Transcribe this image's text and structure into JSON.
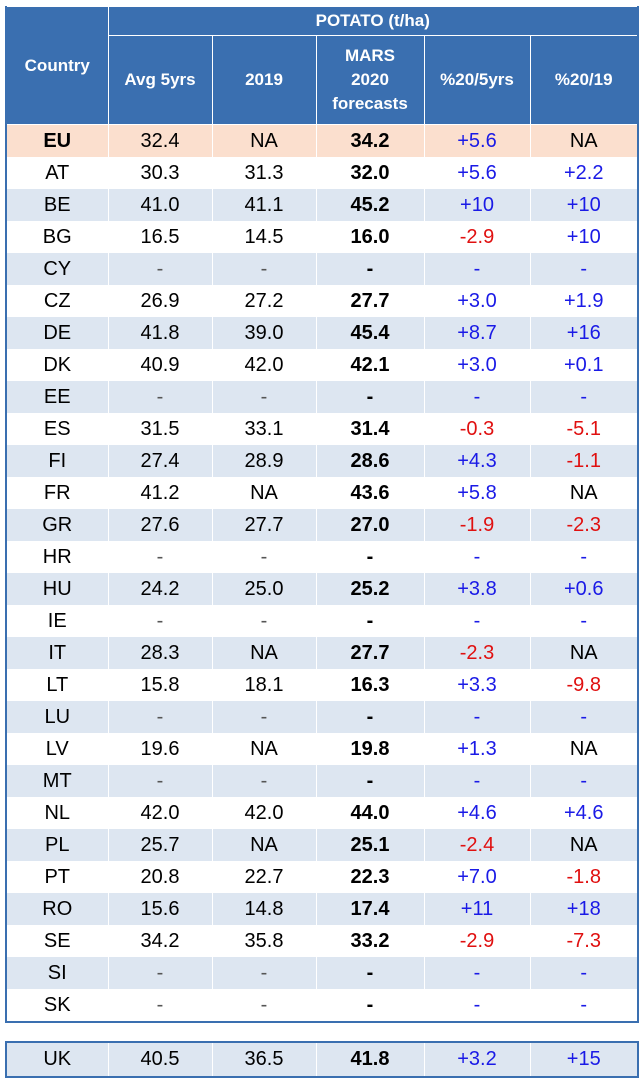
{
  "header": {
    "country": "Country",
    "group": "POTATO (t/ha)",
    "cols": [
      "Avg 5yrs",
      "2019",
      "MARS\n2020\nforecasts",
      "%20/5yrs",
      "%20/19"
    ]
  },
  "rows": [
    {
      "country": "EU",
      "avg": "32.4",
      "y2019": "NA",
      "forecast": "34.2",
      "vs5": "+5.6",
      "vs19": "NA"
    },
    {
      "country": "AT",
      "avg": "30.3",
      "y2019": "31.3",
      "forecast": "32.0",
      "vs5": "+5.6",
      "vs19": "+2.2"
    },
    {
      "country": "BE",
      "avg": "41.0",
      "y2019": "41.1",
      "forecast": "45.2",
      "vs5": "+10",
      "vs19": "+10"
    },
    {
      "country": "BG",
      "avg": "16.5",
      "y2019": "14.5",
      "forecast": "16.0",
      "vs5": "-2.9",
      "vs19": "+10"
    },
    {
      "country": "CY",
      "avg": "-",
      "y2019": "-",
      "forecast": "-",
      "vs5": "-",
      "vs19": "-"
    },
    {
      "country": "CZ",
      "avg": "26.9",
      "y2019": "27.2",
      "forecast": "27.7",
      "vs5": "+3.0",
      "vs19": "+1.9"
    },
    {
      "country": "DE",
      "avg": "41.8",
      "y2019": "39.0",
      "forecast": "45.4",
      "vs5": "+8.7",
      "vs19": "+16"
    },
    {
      "country": "DK",
      "avg": "40.9",
      "y2019": "42.0",
      "forecast": "42.1",
      "vs5": "+3.0",
      "vs19": "+0.1"
    },
    {
      "country": "EE",
      "avg": "-",
      "y2019": "-",
      "forecast": "-",
      "vs5": "-",
      "vs19": "-"
    },
    {
      "country": "ES",
      "avg": "31.5",
      "y2019": "33.1",
      "forecast": "31.4",
      "vs5": "-0.3",
      "vs19": "-5.1"
    },
    {
      "country": "FI",
      "avg": "27.4",
      "y2019": "28.9",
      "forecast": "28.6",
      "vs5": "+4.3",
      "vs19": "-1.1"
    },
    {
      "country": "FR",
      "avg": "41.2",
      "y2019": "NA",
      "forecast": "43.6",
      "vs5": "+5.8",
      "vs19": "NA"
    },
    {
      "country": "GR",
      "avg": "27.6",
      "y2019": "27.7",
      "forecast": "27.0",
      "vs5": "-1.9",
      "vs19": "-2.3"
    },
    {
      "country": "HR",
      "avg": "-",
      "y2019": "-",
      "forecast": "-",
      "vs5": "-",
      "vs19": "-"
    },
    {
      "country": "HU",
      "avg": "24.2",
      "y2019": "25.0",
      "forecast": "25.2",
      "vs5": "+3.8",
      "vs19": "+0.6"
    },
    {
      "country": "IE",
      "avg": "-",
      "y2019": "-",
      "forecast": "-",
      "vs5": "-",
      "vs19": "-"
    },
    {
      "country": "IT",
      "avg": "28.3",
      "y2019": "NA",
      "forecast": "27.7",
      "vs5": "-2.3",
      "vs19": "NA"
    },
    {
      "country": "LT",
      "avg": "15.8",
      "y2019": "18.1",
      "forecast": "16.3",
      "vs5": "+3.3",
      "vs19": "-9.8"
    },
    {
      "country": "LU",
      "avg": "-",
      "y2019": "-",
      "forecast": "-",
      "vs5": "-",
      "vs19": "-"
    },
    {
      "country": "LV",
      "avg": "19.6",
      "y2019": "NA",
      "forecast": "19.8",
      "vs5": "+1.3",
      "vs19": "NA"
    },
    {
      "country": "MT",
      "avg": "-",
      "y2019": "-",
      "forecast": "-",
      "vs5": "-",
      "vs19": "-"
    },
    {
      "country": "NL",
      "avg": "42.0",
      "y2019": "42.0",
      "forecast": "44.0",
      "vs5": "+4.6",
      "vs19": "+4.6"
    },
    {
      "country": "PL",
      "avg": "25.7",
      "y2019": "NA",
      "forecast": "25.1",
      "vs5": "-2.4",
      "vs19": "NA"
    },
    {
      "country": "PT",
      "avg": "20.8",
      "y2019": "22.7",
      "forecast": "22.3",
      "vs5": "+7.0",
      "vs19": "-1.8"
    },
    {
      "country": "RO",
      "avg": "15.6",
      "y2019": "14.8",
      "forecast": "17.4",
      "vs5": "+11",
      "vs19": "+18"
    },
    {
      "country": "SE",
      "avg": "34.2",
      "y2019": "35.8",
      "forecast": "33.2",
      "vs5": "-2.9",
      "vs19": "-7.3"
    },
    {
      "country": "SI",
      "avg": "-",
      "y2019": "-",
      "forecast": "-",
      "vs5": "-",
      "vs19": "-"
    },
    {
      "country": "SK",
      "avg": "-",
      "y2019": "-",
      "forecast": "-",
      "vs5": "-",
      "vs19": "-"
    }
  ],
  "uk": {
    "country": "UK",
    "avg": "40.5",
    "y2019": "36.5",
    "forecast": "41.8",
    "vs5": "+3.2",
    "vs19": "+15"
  },
  "colors": {
    "header_bg": "#3a6fb0",
    "stripe": "#dde6f1",
    "eu_highlight": "#fbdfce",
    "positive": "#1a1ae6",
    "negative": "#e01010"
  }
}
